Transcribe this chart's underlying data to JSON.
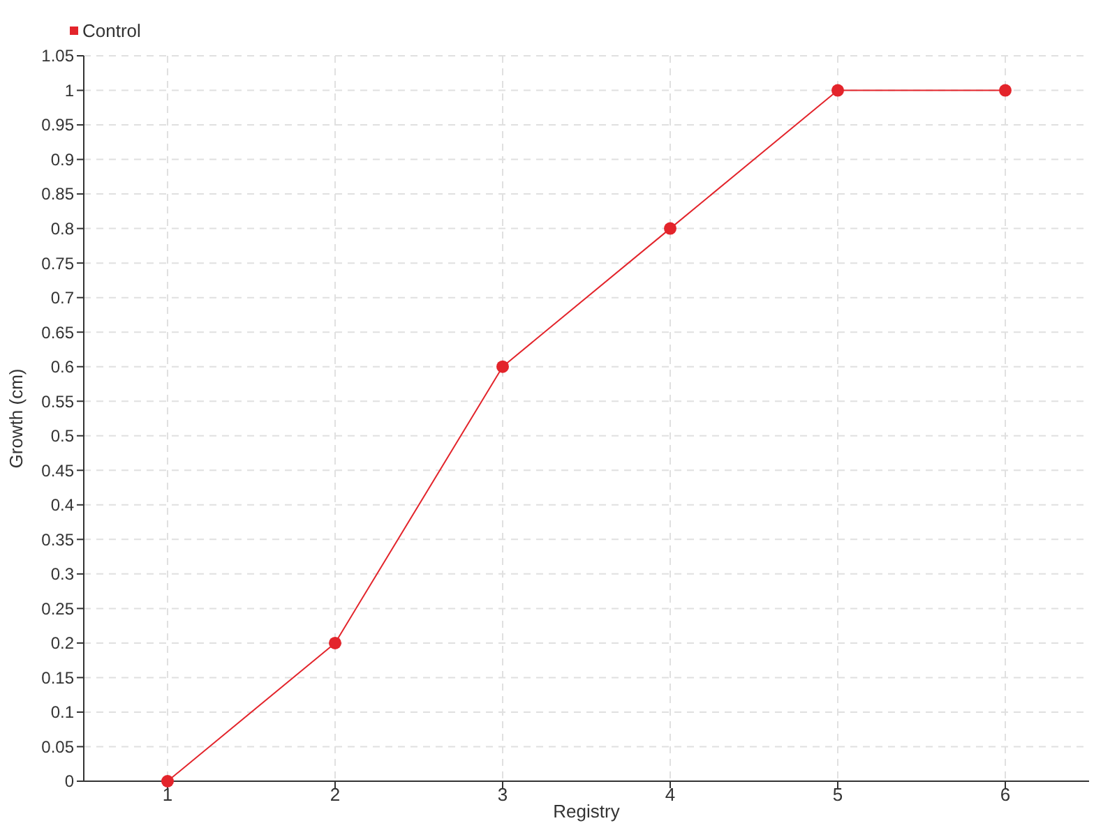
{
  "chart_data": {
    "type": "line",
    "xlabel": "Registry",
    "ylabel": "Growth (cm)",
    "x": [
      1,
      2,
      3,
      4,
      5,
      6
    ],
    "series": [
      {
        "name": "Control",
        "color": "#e3242b",
        "values": [
          0,
          0.2,
          0.6,
          0.8,
          1,
          1
        ]
      }
    ],
    "xlim": [
      0.5,
      6.5
    ],
    "xticks": [
      1,
      2,
      3,
      4,
      5,
      6
    ],
    "ylim": [
      0,
      1.05
    ],
    "yticks": [
      0,
      0.05,
      0.1,
      0.15,
      0.2,
      0.25,
      0.3,
      0.35,
      0.4,
      0.45,
      0.5,
      0.55,
      0.6,
      0.65,
      0.7,
      0.75,
      0.8,
      0.85,
      0.9,
      0.95,
      1,
      1.05
    ],
    "grid": true,
    "legend": "top left",
    "marker": "circle",
    "line_style": "solid"
  }
}
